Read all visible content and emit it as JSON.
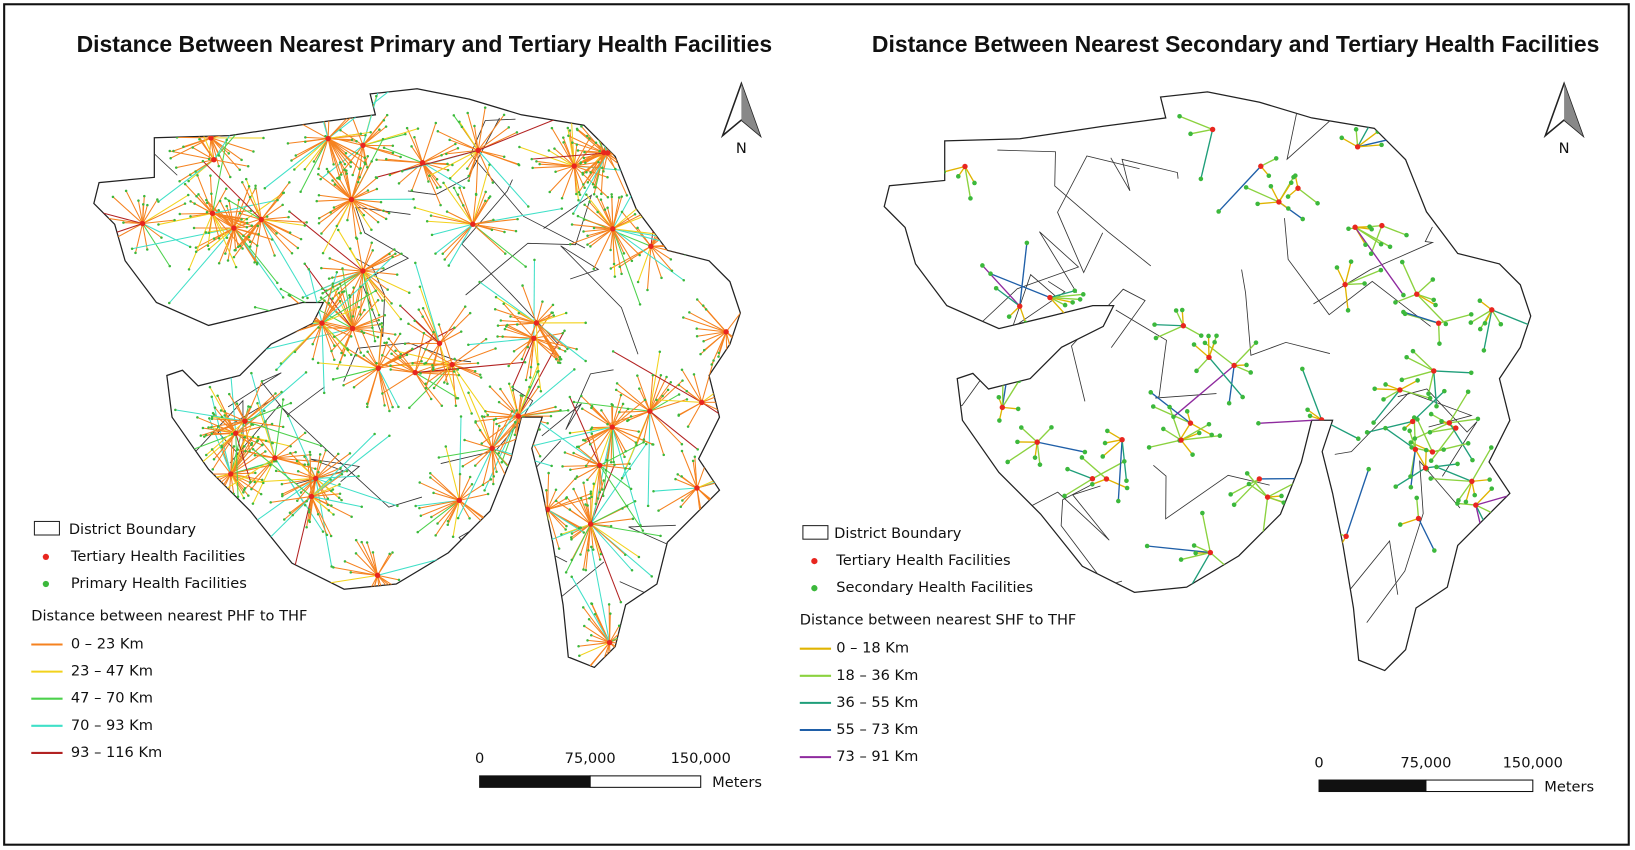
{
  "maps": [
    {
      "title": "Distance Between Nearest Primary and Tertiary Health Facilities",
      "north": "N",
      "legend": {
        "boundary": "District Boundary",
        "points": [
          {
            "label": "Tertiary Health Facilities",
            "color": "#e8261f"
          },
          {
            "label": "Primary Health Facilities",
            "color": "#3cb83c"
          }
        ],
        "lines_title": "Distance between nearest PHF to THF",
        "classes": [
          {
            "label": "0 – 23 Km",
            "color": "#f5821f"
          },
          {
            "label": "23 – 47 Km",
            "color": "#f2d21c"
          },
          {
            "label": "47 – 70 Km",
            "color": "#4cd14c"
          },
          {
            "label": "70 – 93 Km",
            "color": "#40e0c8"
          },
          {
            "label": "93 – 116 Km",
            "color": "#b22222"
          }
        ]
      },
      "scale": {
        "ticks": [
          "0",
          "75,000",
          "150,000"
        ],
        "unit": "Meters"
      }
    },
    {
      "title": "Distance Between Nearest Secondary and Tertiary Health Facilities",
      "north": "N",
      "legend": {
        "boundary": "District Boundary",
        "points": [
          {
            "label": "Tertiary Health Facilities",
            "color": "#e8261f"
          },
          {
            "label": "Secondary Health Facilities",
            "color": "#3cb83c"
          }
        ],
        "lines_title": "Distance between nearest SHF to THF",
        "classes": [
          {
            "label": "0 – 18 Km",
            "color": "#e0b400"
          },
          {
            "label": "18 – 36 Km",
            "color": "#8bd23f"
          },
          {
            "label": "36 – 55 Km",
            "color": "#1f9e7a"
          },
          {
            "label": "55 – 73 Km",
            "color": "#1f5fa8"
          },
          {
            "label": "73 – 91 Km",
            "color": "#8e2a9e"
          }
        ]
      },
      "scale": {
        "ticks": [
          "0",
          "75,000",
          "150,000"
        ],
        "unit": "Meters"
      }
    }
  ]
}
